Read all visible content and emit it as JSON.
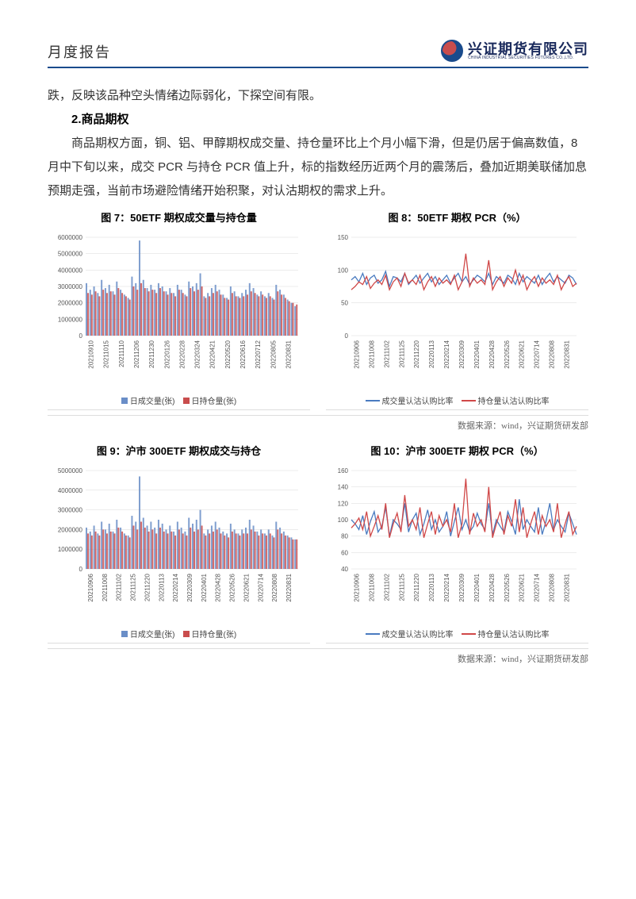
{
  "header": {
    "title": "月度报告",
    "logo_cn": "兴证期货有限公司",
    "logo_en": "CHINA INDUSTRIAL SECURITIES FUTURES CO.,LTD."
  },
  "para1": "跌，反映该品种空头情绪边际弱化，下探空间有限。",
  "sect2": "2.商品期权",
  "para2": "商品期权方面，铜、铝、甲醇期权成交量、持仓量环比上个月小幅下滑，但是仍居于偏高数值，8 月中下旬以来，成交 PCR 与持仓 PCR 值上升，标的指数经历近两个月的震荡后，叠加近期美联储加息预期走强，当前市场避险情绪开始积聚，对认沽期权的需求上升。",
  "fig7": {
    "title": "图 7：50ETF 期权成交量与持仓量"
  },
  "fig8": {
    "title": "图 8：50ETF 期权 PCR（%）"
  },
  "fig9": {
    "title": "图 9：沪市 300ETF 期权成交与持仓"
  },
  "fig10": {
    "title": "图 10：沪市 300ETF 期权 PCR（%）"
  },
  "source": "数据来源：wind，兴证期货研发部",
  "colors": {
    "blue": "#6a8ec7",
    "red": "#c94d4d",
    "line_blue": "#4a7bc0",
    "line_red": "#d04848",
    "grid": "#d8d8d8",
    "axis": "#888"
  },
  "legend_bar": {
    "a": "日成交量(张)",
    "b": "日持仓量(张)"
  },
  "legend_line": {
    "a": "成交量认沽认购比率",
    "b": "持仓量认沽认购比率"
  },
  "dates": [
    "20210906",
    "20211008",
    "20211102",
    "20211125",
    "20211220",
    "20220113",
    "20220214",
    "20220309",
    "20220401",
    "20220428",
    "20220526",
    "20220621",
    "20220714",
    "20220808",
    "20220831"
  ],
  "dates7": [
    "20210910",
    "20211015",
    "20211110",
    "20211206",
    "20211230",
    "20220126",
    "20220228",
    "20220324",
    "20220421",
    "20220520",
    "20220616",
    "20220712",
    "20220805",
    "20220831"
  ],
  "chart7": {
    "type": "bar",
    "ymax": 6000000,
    "ystep": 1000000,
    "yticks": [
      "0",
      "1000000",
      "2000000",
      "3000000",
      "4000000",
      "5000000",
      "6000000"
    ],
    "series_a": [
      3200000,
      2800000,
      3000000,
      2600000,
      3400000,
      2900000,
      3100000,
      2700000,
      3300000,
      2800000,
      2500000,
      2300000,
      3600000,
      3200000,
      5800000,
      3400000,
      2900000,
      3100000,
      2800000,
      3200000,
      3000000,
      2700000,
      2900000,
      2600000,
      3100000,
      2800000,
      2500000,
      3300000,
      3000000,
      3200000,
      3800000,
      2400000,
      2600000,
      2900000,
      3100000,
      2800000,
      2500000,
      2300000,
      3000000,
      2700000,
      2400000,
      2600000,
      2800000,
      3200000,
      2900000,
      2500000,
      2700000,
      2400000,
      2600000,
      2300000,
      3100000,
      2800000,
      2500000,
      2200000,
      2000000,
      1800000
    ],
    "series_b": [
      2600000,
      2500000,
      2700000,
      2400000,
      2800000,
      2600000,
      2700000,
      2500000,
      2900000,
      2600000,
      2400000,
      2200000,
      3000000,
      2800000,
      3200000,
      2900000,
      2700000,
      2800000,
      2600000,
      2900000,
      2700000,
      2500000,
      2600000,
      2400000,
      2800000,
      2600000,
      2400000,
      2900000,
      2700000,
      2800000,
      3000000,
      2300000,
      2400000,
      2600000,
      2700000,
      2500000,
      2300000,
      2200000,
      2600000,
      2400000,
      2300000,
      2400000,
      2500000,
      2700000,
      2600000,
      2400000,
      2500000,
      2300000,
      2400000,
      2200000,
      2700000,
      2500000,
      2300000,
      2100000,
      2000000,
      1900000
    ]
  },
  "chart8": {
    "type": "line",
    "ymax": 150,
    "ymin": 0,
    "ystep": 50,
    "yticks": [
      "0",
      "50",
      "100",
      "150"
    ],
    "series_a": [
      85,
      90,
      82,
      95,
      78,
      88,
      92,
      80,
      85,
      98,
      75,
      90,
      88,
      82,
      95,
      78,
      85,
      92,
      80,
      88,
      95,
      82,
      90,
      78,
      85,
      92,
      80,
      88,
      95,
      82,
      90,
      78,
      85,
      92,
      88,
      82,
      95,
      78,
      90,
      85,
      80,
      92,
      88,
      78,
      95,
      82,
      90,
      85,
      80,
      92,
      78,
      88,
      95,
      82,
      90,
      85,
      80,
      92,
      88,
      78
    ],
    "series_b": [
      70,
      75,
      82,
      78,
      90,
      72,
      80,
      85,
      78,
      92,
      70,
      82,
      88,
      75,
      95,
      80,
      85,
      78,
      92,
      70,
      82,
      90,
      75,
      88,
      80,
      85,
      78,
      92,
      70,
      82,
      125,
      75,
      88,
      80,
      85,
      78,
      115,
      70,
      82,
      90,
      75,
      88,
      80,
      100,
      78,
      92,
      70,
      82,
      90,
      75,
      88,
      80,
      85,
      78,
      92,
      70,
      82,
      90,
      75,
      80
    ]
  },
  "chart9": {
    "type": "bar",
    "ymax": 5000000,
    "ystep": 1000000,
    "yticks": [
      "0",
      "1000000",
      "2000000",
      "3000000",
      "4000000",
      "5000000"
    ],
    "series_a": [
      2100000,
      1900000,
      2200000,
      1800000,
      2400000,
      2000000,
      2300000,
      1900000,
      2500000,
      2100000,
      1800000,
      1700000,
      2700000,
      2400000,
      4700000,
      2600000,
      2200000,
      2400000,
      2100000,
      2500000,
      2300000,
      2000000,
      2200000,
      1900000,
      2400000,
      2100000,
      1900000,
      2600000,
      2300000,
      2500000,
      3000000,
      1800000,
      2000000,
      2200000,
      2400000,
      2100000,
      1900000,
      1800000,
      2300000,
      2000000,
      1800000,
      2000000,
      2100000,
      2500000,
      2200000,
      1900000,
      2000000,
      1800000,
      2000000,
      1700000,
      2400000,
      2100000,
      1900000,
      1700000,
      1600000,
      1500000
    ],
    "series_b": [
      1800000,
      1700000,
      1900000,
      1700000,
      2000000,
      1800000,
      1900000,
      1800000,
      2100000,
      1900000,
      1700000,
      1600000,
      2200000,
      2000000,
      2400000,
      2100000,
      1900000,
      2000000,
      1800000,
      2100000,
      1900000,
      1800000,
      1900000,
      1700000,
      2000000,
      1800000,
      1700000,
      2100000,
      1900000,
      2000000,
      2200000,
      1700000,
      1800000,
      1900000,
      2000000,
      1800000,
      1700000,
      1600000,
      1900000,
      1800000,
      1700000,
      1800000,
      1800000,
      2000000,
      1900000,
      1700000,
      1800000,
      1700000,
      1800000,
      1600000,
      2000000,
      1800000,
      1700000,
      1600000,
      1500000,
      1500000
    ]
  },
  "chart10": {
    "type": "line",
    "ymax": 160,
    "ymin": 40,
    "ystep": 20,
    "yticks": [
      "40",
      "60",
      "80",
      "100",
      "120",
      "140",
      "160"
    ],
    "series_a": [
      100,
      95,
      88,
      105,
      82,
      98,
      110,
      85,
      92,
      115,
      80,
      100,
      95,
      88,
      120,
      85,
      100,
      108,
      82,
      95,
      112,
      88,
      100,
      85,
      92,
      110,
      80,
      98,
      115,
      88,
      100,
      85,
      92,
      108,
      95,
      88,
      120,
      82,
      100,
      92,
      85,
      110,
      98,
      82,
      125,
      88,
      100,
      92,
      85,
      115,
      82,
      98,
      120,
      88,
      100,
      92,
      85,
      108,
      95,
      82
    ],
    "series_b": [
      90,
      95,
      102,
      88,
      110,
      80,
      92,
      105,
      88,
      120,
      78,
      95,
      108,
      85,
      130,
      92,
      100,
      88,
      115,
      78,
      95,
      110,
      82,
      105,
      92,
      100,
      85,
      120,
      78,
      95,
      150,
      82,
      108,
      92,
      100,
      85,
      140,
      78,
      95,
      110,
      82,
      105,
      92,
      125,
      85,
      115,
      78,
      95,
      110,
      82,
      105,
      92,
      100,
      85,
      120,
      78,
      95,
      110,
      82,
      92
    ]
  }
}
